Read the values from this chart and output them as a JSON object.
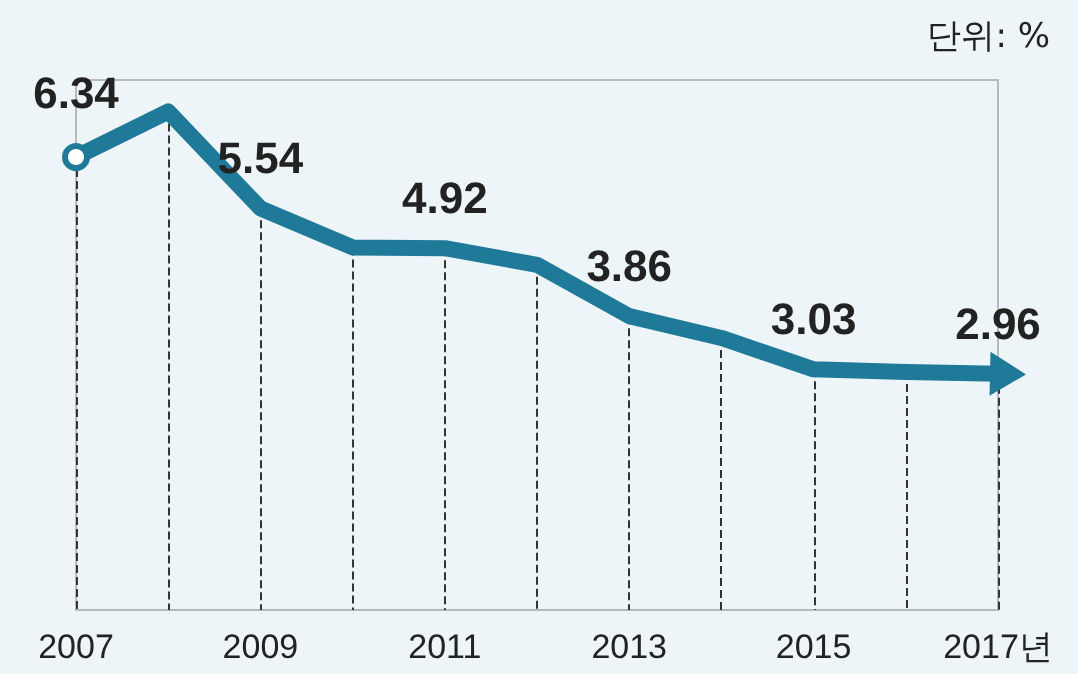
{
  "chart_data": {
    "type": "line",
    "categories": [
      "2007",
      null,
      "2009",
      null,
      "2011",
      null,
      "2013",
      null,
      "2015",
      null,
      "2017년"
    ],
    "series": [
      {
        "color": "#1f7a99",
        "values": [
          6.34,
          7.05,
          5.54,
          4.93,
          4.92,
          4.66,
          3.86,
          3.52,
          3.03,
          2.99,
          2.96
        ],
        "value_labels": [
          "6.34",
          null,
          "5.54",
          null,
          "4.92",
          null,
          "3.86",
          null,
          "3.03",
          null,
          "2.96"
        ]
      }
    ],
    "annotations": [
      "단위: %"
    ],
    "tick_labels": "x",
    "grid": "x",
    "marker": "none",
    "line_style": "solid"
  }
}
